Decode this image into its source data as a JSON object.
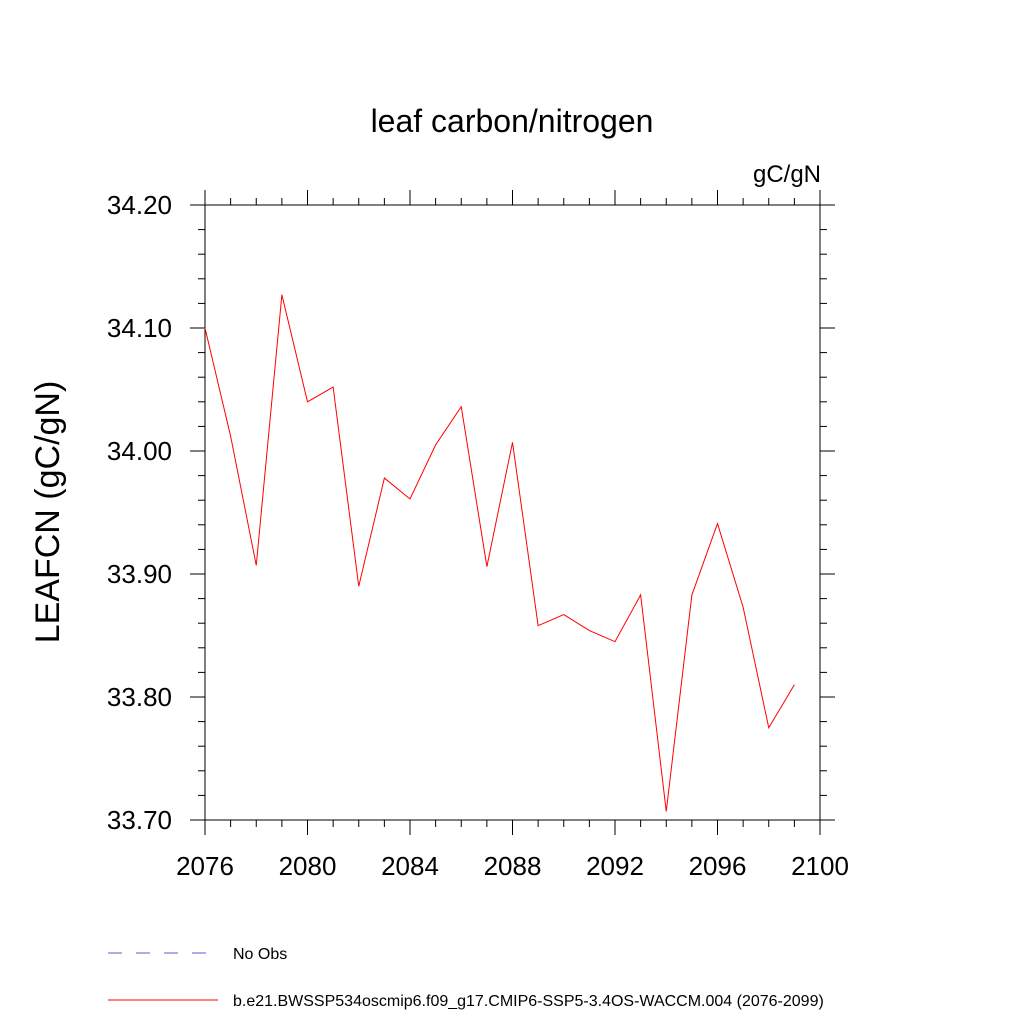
{
  "chart_data": {
    "type": "line",
    "title": "leaf carbon/nitrogen",
    "units": "gC/gN",
    "ylabel": "LEAFCN  (gC/gN)",
    "xlabel": "",
    "xlim": [
      2076,
      2100
    ],
    "ylim": [
      33.7,
      34.2
    ],
    "x_ticks": [
      2076,
      2080,
      2084,
      2088,
      2092,
      2096,
      2100
    ],
    "y_ticks": [
      "33.70",
      "33.80",
      "33.90",
      "34.00",
      "34.10",
      "34.20"
    ],
    "series": [
      {
        "name": "b.e21.BWSSP534oscmip6.f09_g17.CMIP6-SSP5-3.4OS-WACCM.004 (2076-2099)",
        "color": "#ff0000",
        "x": [
          2076,
          2077,
          2078,
          2079,
          2080,
          2081,
          2082,
          2083,
          2084,
          2085,
          2086,
          2087,
          2088,
          2089,
          2090,
          2091,
          2092,
          2093,
          2094,
          2095,
          2096,
          2097,
          2098,
          2099
        ],
        "y": [
          34.1,
          34.012,
          33.907,
          34.127,
          34.04,
          34.052,
          33.89,
          33.978,
          33.961,
          34.005,
          34.036,
          33.906,
          34.007,
          33.858,
          33.867,
          33.854,
          33.845,
          33.883,
          33.707,
          33.883,
          33.941,
          33.873,
          33.775,
          33.81
        ]
      }
    ],
    "legend": [
      {
        "label": "No Obs",
        "style": "dashed",
        "color": "#6a5acd"
      },
      {
        "label": "b.e21.BWSSP534oscmip6.f09_g17.CMIP6-SSP5-3.4OS-WACCM.004 (2076-2099)",
        "style": "solid",
        "color": "#ff0000"
      }
    ],
    "legend_position": "bottom-left",
    "grid": false
  }
}
